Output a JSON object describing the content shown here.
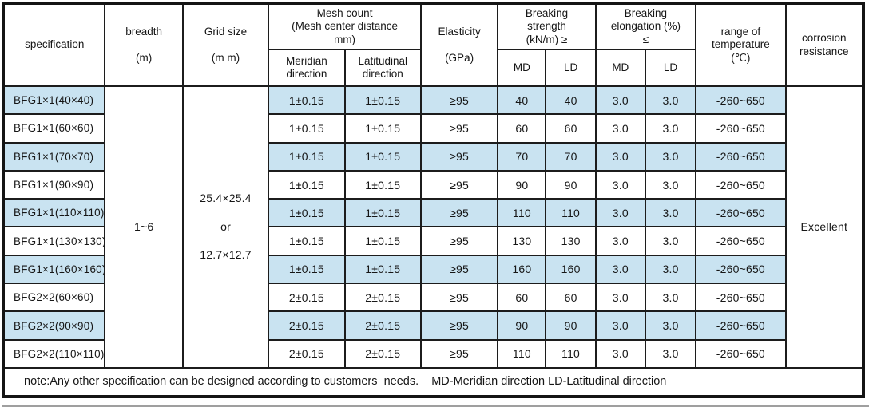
{
  "colors": {
    "row_highlight": "#c9e3f1",
    "table_border": "#1c1c1c",
    "page_background": "#ffffff",
    "scan_edge": "#9f9f9f"
  },
  "header": {
    "specification": "specification",
    "breadth": [
      "breadth",
      "",
      "(m)"
    ],
    "grid_size": [
      "Grid size",
      "",
      "(m m)"
    ],
    "mesh_count": [
      "Mesh count",
      "(Mesh center distance",
      "mm)"
    ],
    "meridian": [
      "Meridian",
      "direction"
    ],
    "latitudinal": [
      "Latitudinal",
      "direction"
    ],
    "elasticity": [
      "Elasticity",
      "",
      "(GPa)"
    ],
    "breaking_strength": [
      "Breaking",
      "strength",
      "(kN/m) ≥"
    ],
    "breaking_elongation": [
      "Breaking",
      "elongation (%)",
      "≤"
    ],
    "strength_md": "MD",
    "strength_ld": "LD",
    "elongation_md": "MD",
    "elongation_ld": "LD",
    "temperature": [
      "range of",
      "temperature",
      "(℃)"
    ],
    "corrosion": [
      "corrosion",
      "resistance"
    ]
  },
  "merged": {
    "breadth": "1~6",
    "grid_size": [
      "25.4×25.4",
      "or",
      "12.7×12.7"
    ],
    "corrosion": "Excellent"
  },
  "rows": [
    {
      "specification": "BFG1×1(40×40)",
      "meridian": "1±0.15",
      "latitudinal": "1±0.15",
      "elasticity": "≥95",
      "strength_md": "40",
      "strength_ld": "40",
      "elongation_md": "3.0",
      "elongation_ld": "3.0",
      "temperature": "-260~650",
      "highlight": true
    },
    {
      "specification": "BFG1×1(60×60)",
      "meridian": "1±0.15",
      "latitudinal": "1±0.15",
      "elasticity": "≥95",
      "strength_md": "60",
      "strength_ld": "60",
      "elongation_md": "3.0",
      "elongation_ld": "3.0",
      "temperature": "-260~650",
      "highlight": false
    },
    {
      "specification": "BFG1×1(70×70)",
      "meridian": "1±0.15",
      "latitudinal": "1±0.15",
      "elasticity": "≥95",
      "strength_md": "70",
      "strength_ld": "70",
      "elongation_md": "3.0",
      "elongation_ld": "3.0",
      "temperature": "-260~650",
      "highlight": true
    },
    {
      "specification": "BFG1×1(90×90)",
      "meridian": "1±0.15",
      "latitudinal": "1±0.15",
      "elasticity": "≥95",
      "strength_md": "90",
      "strength_ld": "90",
      "elongation_md": "3.0",
      "elongation_ld": "3.0",
      "temperature": "-260~650",
      "highlight": false
    },
    {
      "specification": "BFG1×1(110×110)",
      "meridian": "1±0.15",
      "latitudinal": "1±0.15",
      "elasticity": "≥95",
      "strength_md": "110",
      "strength_ld": "110",
      "elongation_md": "3.0",
      "elongation_ld": "3.0",
      "temperature": "-260~650",
      "highlight": true
    },
    {
      "specification": "BFG1×1(130×130)",
      "meridian": "1±0.15",
      "latitudinal": "1±0.15",
      "elasticity": "≥95",
      "strength_md": "130",
      "strength_ld": "130",
      "elongation_md": "3.0",
      "elongation_ld": "3.0",
      "temperature": "-260~650",
      "highlight": false
    },
    {
      "specification": "BFG1×1(160×160)",
      "meridian": "1±0.15",
      "latitudinal": "1±0.15",
      "elasticity": "≥95",
      "strength_md": "160",
      "strength_ld": "160",
      "elongation_md": "3.0",
      "elongation_ld": "3.0",
      "temperature": "-260~650",
      "highlight": true
    },
    {
      "specification": "BFG2×2(60×60)",
      "meridian": "2±0.15",
      "latitudinal": "2±0.15",
      "elasticity": "≥95",
      "strength_md": "60",
      "strength_ld": "60",
      "elongation_md": "3.0",
      "elongation_ld": "3.0",
      "temperature": "-260~650",
      "highlight": false
    },
    {
      "specification": "BFG2×2(90×90)",
      "meridian": "2±0.15",
      "latitudinal": "2±0.15",
      "elasticity": "≥95",
      "strength_md": "90",
      "strength_ld": "90",
      "elongation_md": "3.0",
      "elongation_ld": "3.0",
      "temperature": "-260~650",
      "highlight": true
    },
    {
      "specification": "BFG2×2(110×110)",
      "meridian": "2±0.15",
      "latitudinal": "2±0.15",
      "elasticity": "≥95",
      "strength_md": "110",
      "strength_ld": "110",
      "elongation_md": "3.0",
      "elongation_ld": "3.0",
      "temperature": "-260~650",
      "highlight": false
    }
  ],
  "note": "note:Any other specification can be designed according to customers  needs.    MD-Meridian direction LD-Latitudinal direction"
}
